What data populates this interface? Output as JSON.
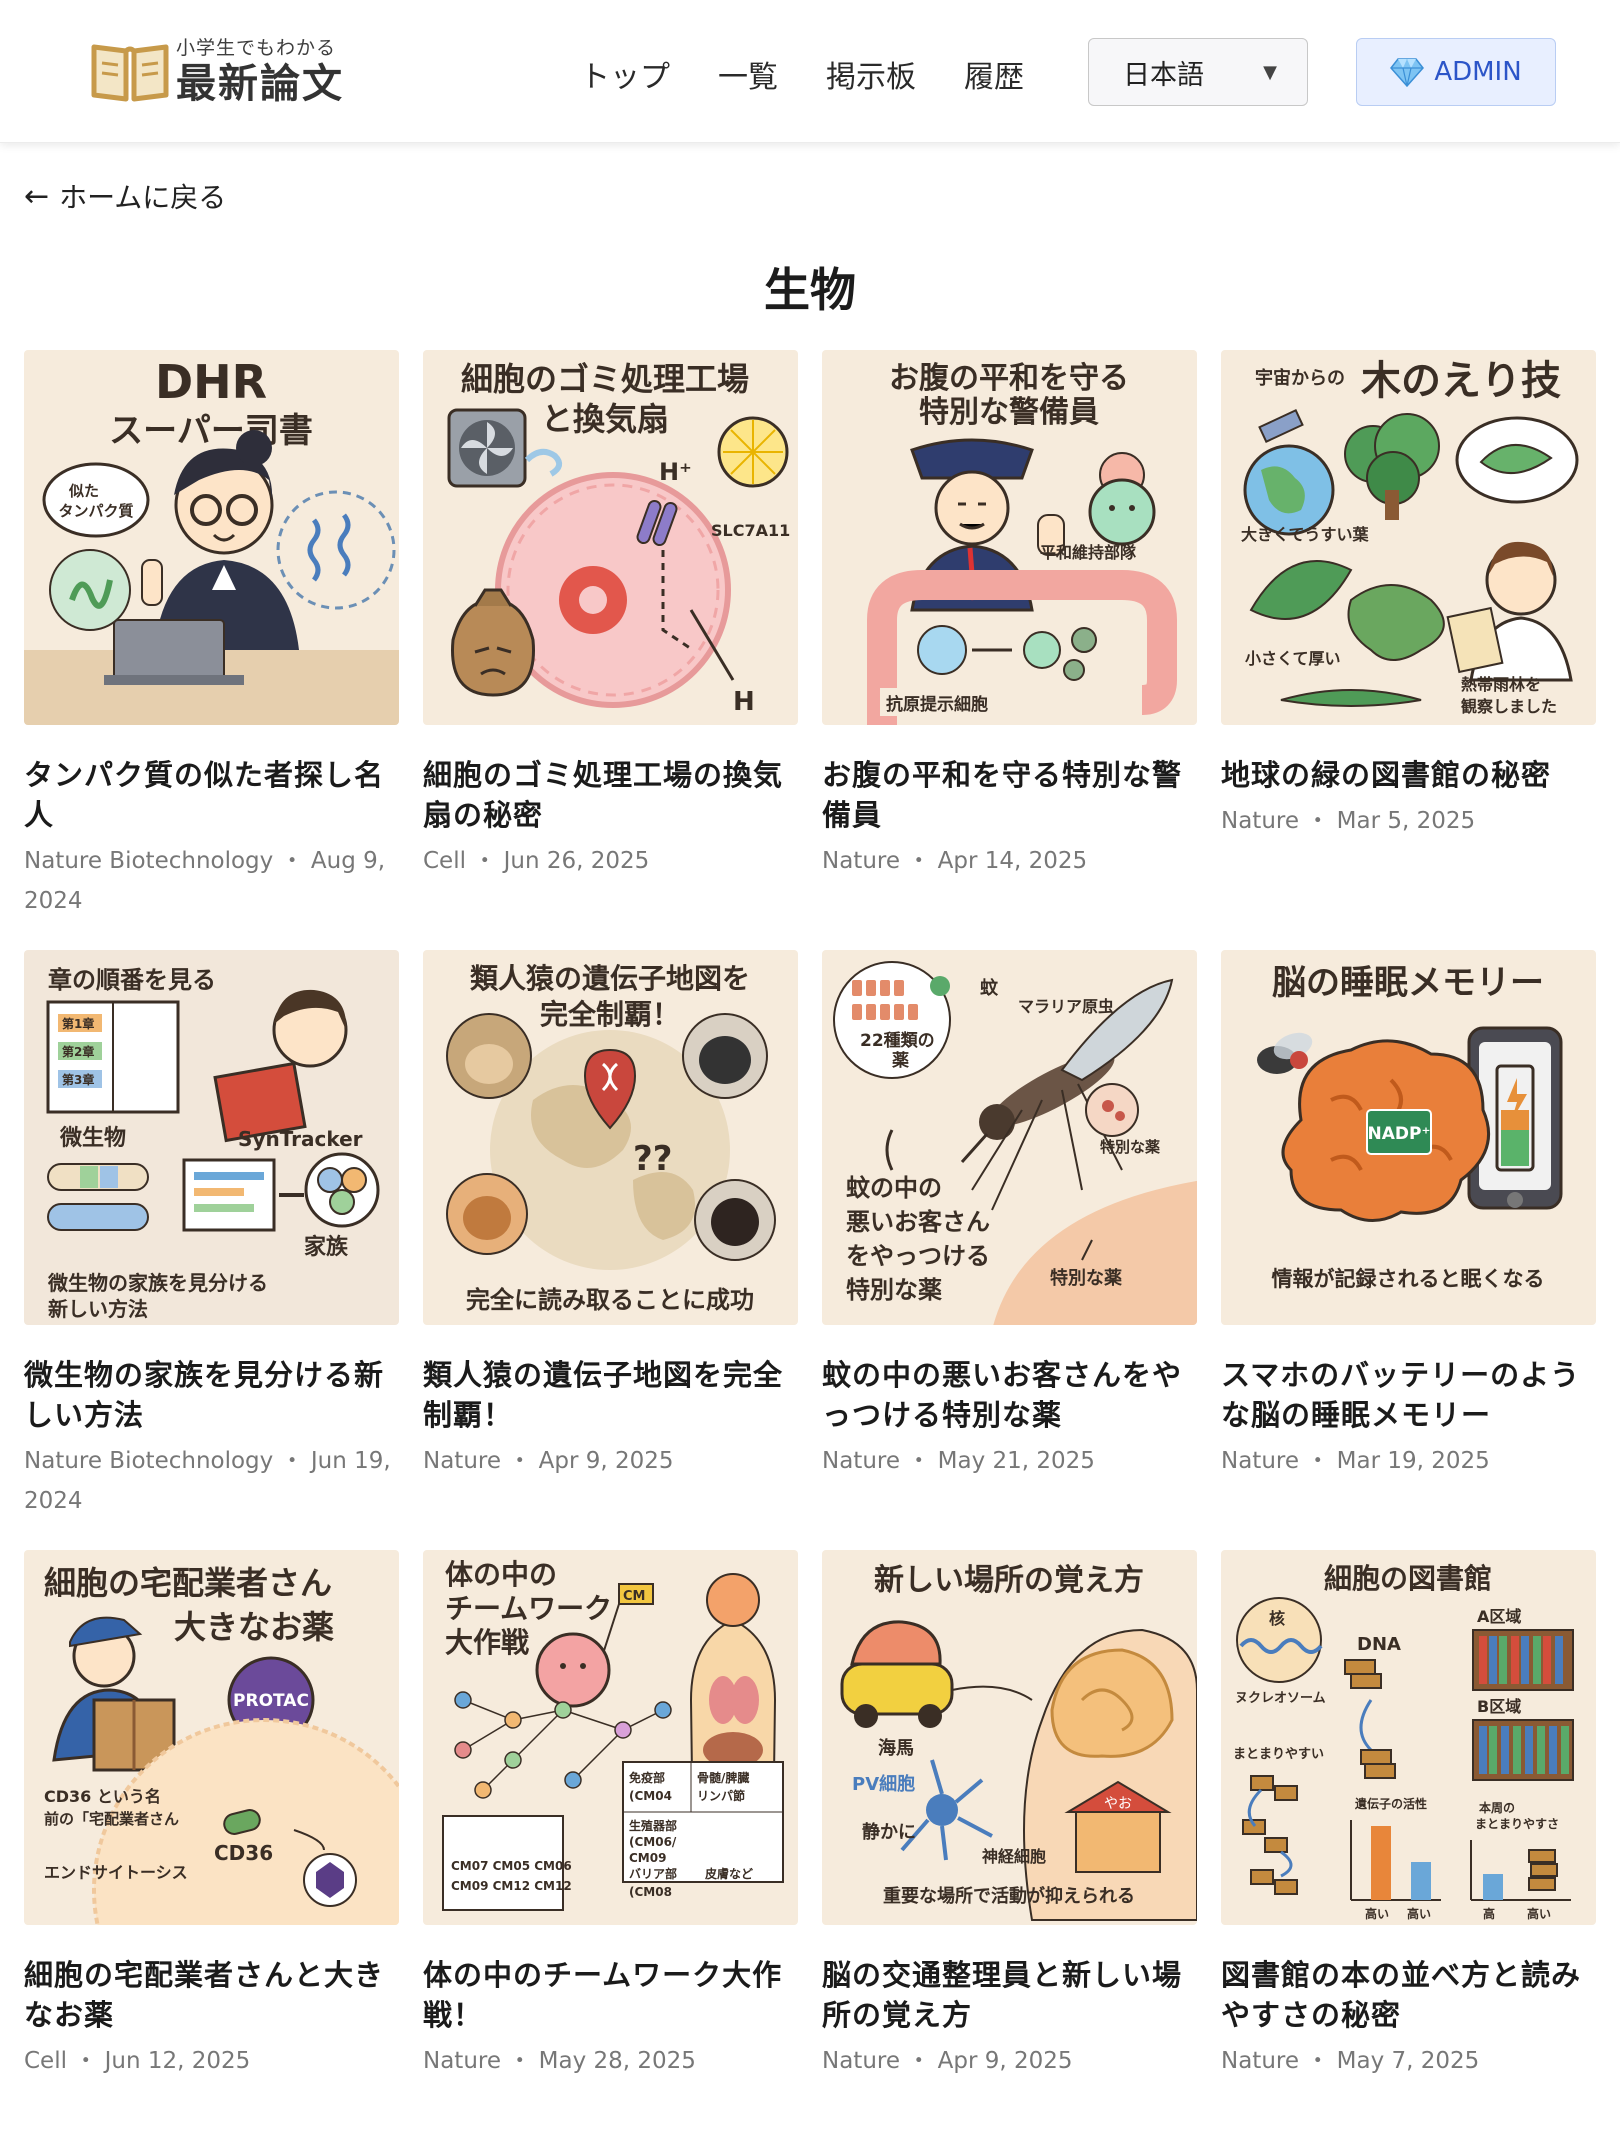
{
  "header": {
    "logo_sub": "小学生でもわかる",
    "logo_main": "最新論文",
    "nav": [
      "トップ",
      "一覧",
      "掲示板",
      "履歴"
    ],
    "language": "日本語",
    "admin_label": "ADMIN"
  },
  "back_link": "ホームに戻る",
  "page_title": "生物",
  "colors": {
    "thumb_bg": "#f7ecdd",
    "admin_bg": "#e8efff",
    "admin_text": "#2c55c8",
    "meta_text": "#777777"
  },
  "cards": [
    {
      "title": "タンパク質の似た者探し名人",
      "journal": "Nature Biotechnology",
      "date": "Aug 9, 2024",
      "thumb": {
        "heading": "DHR",
        "heading2": "スーパー司書",
        "bubble": "似た\nタンパク質"
      }
    },
    {
      "title": "細胞のゴミ処理工場の換気扇の秘密",
      "journal": "Cell",
      "date": "Jun 26, 2025",
      "thumb": {
        "heading": "細胞のゴミ処理工場",
        "heading2": "と換気扇",
        "label1": "H⁺",
        "label2": "SLC7A11",
        "label3": "H"
      }
    },
    {
      "title": "お腹の平和を守る特別な警備員",
      "journal": "Nature",
      "date": "Apr 14, 2025",
      "thumb": {
        "heading": "お腹の平和を守る",
        "heading2": "特別な警備員",
        "label1": "平和維持部隊",
        "label2": "抗原提示細胞"
      }
    },
    {
      "title": "地球の緑の図書館の秘密",
      "journal": "Nature",
      "date": "Mar 5, 2025",
      "thumb": {
        "heading_small": "宇宙からの",
        "heading": "木のえり技",
        "label1": "大きくてうすい葉",
        "label2": "小さくて厚い",
        "label3": "熱帯雨林を",
        "label4": "観察しました"
      }
    },
    {
      "title": "微生物の家族を見分ける新しい方法",
      "journal": "Nature Biotechnology",
      "date": "Jun 19, 2024",
      "thumb": {
        "heading": "章の順番を見る",
        "label1": "第1章",
        "label2": "第2章",
        "label3": "第3章",
        "label4": "微生物",
        "label5": "SynTracker",
        "label6": "家族",
        "footer": "微生物の家族を見分ける",
        "footer2": "新しい方法"
      }
    },
    {
      "title": "類人猿の遺伝子地図を完全制覇！",
      "journal": "Nature",
      "date": "Apr 9, 2025",
      "thumb": {
        "heading": "類人猿の遺伝子地図を",
        "heading2": "完全制覇！",
        "footer": "完全に読み取ることに成功"
      }
    },
    {
      "title": "蚊の中の悪いお客さんをやっつける特別な薬",
      "journal": "Nature",
      "date": "May 21, 2025",
      "thumb": {
        "label1": "蚊",
        "label2": "マラリア原虫",
        "label3": "22種類の",
        "label4": "薬",
        "label5": "特別な薬",
        "text1": "蚊の中の",
        "text2": "悪いお客さん",
        "text3": "をやっつける",
        "text4": "特別な薬",
        "label6": "特別な薬"
      }
    },
    {
      "title": "スマホのバッテリーのような脳の睡眠メモリー",
      "journal": "Nature",
      "date": "Mar 19, 2025",
      "thumb": {
        "heading": "脳の睡眠メモリー",
        "label1": "NADP⁺",
        "footer": "情報が記録されると眠くなる"
      }
    },
    {
      "title": "細胞の宅配業者さんと大きなお薬",
      "journal": "Cell",
      "date": "Jun 12, 2025",
      "thumb": {
        "heading": "細胞の宅配業者さん",
        "heading2": "大きなお薬",
        "label1": "PROTAC",
        "label2": "CD36 という名",
        "label3": "前の「宅配業者さん",
        "label4": "CD36",
        "label5": "エンドサイトーシス"
      }
    },
    {
      "title": "体の中のチームワーク大作戦！",
      "journal": "Nature",
      "date": "May 28, 2025",
      "thumb": {
        "heading": "体の中の",
        "heading2": "チームワーク",
        "heading3": "大作戦",
        "label1": "CM",
        "label2": "免疫部",
        "label3": "(CM04",
        "label4": "骨髄/脾臓",
        "label5": "リンパ節",
        "label6": "生殖器部",
        "label7": "(CM06/",
        "label8": "CM09",
        "label9": "バリア部",
        "label10": "皮膚など",
        "label11": "(CM08",
        "label12": "CM07 CM05 CM06",
        "label13": "CM09 CM12 CM12"
      }
    },
    {
      "title": "脳の交通整理員と新しい場所の覚え方",
      "journal": "Nature",
      "date": "Apr 9, 2025",
      "thumb": {
        "heading": "新しい場所の覚え方",
        "label1": "海馬",
        "label2": "PV細胞",
        "label3": "静かに",
        "label4": "神経細胞",
        "label5": "やお",
        "footer": "重要な場所で活動が抑えられる"
      }
    },
    {
      "title": "図書館の本の並べ方と読みやすさの秘密",
      "journal": "Nature",
      "date": "May 7, 2025",
      "thumb": {
        "heading": "細胞の図書館",
        "label1": "核",
        "label2": "DNA",
        "label3": "A区域",
        "label4": "B区域",
        "label5": "ヌクレオソーム",
        "label6": "まとまりやすい",
        "label7": "遺伝子の活性",
        "label8": "本周の",
        "label9": "まとまりやすさ",
        "label10": "高い",
        "label11": "高い",
        "label12": "高",
        "label13": "高い"
      }
    }
  ]
}
